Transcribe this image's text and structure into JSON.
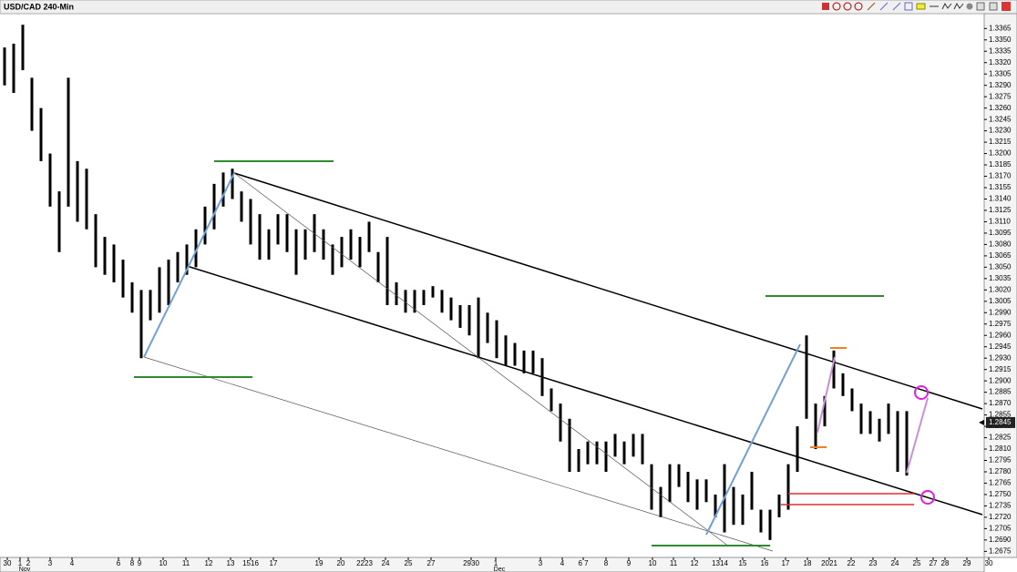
{
  "chart_data": {
    "type": "ohlc",
    "title": "USD/CAD 240-Min",
    "high": [
      1.334,
      1.3345,
      1.337,
      1.33,
      1.326,
      1.32,
      1.315,
      1.33,
      1.319,
      1.318,
      1.312,
      1.309,
      1.308,
      1.306,
      1.303,
      1.302,
      1.302,
      1.305,
      1.306,
      1.307,
      1.308,
      1.31,
      1.313,
      1.316,
      1.3175,
      1.318,
      1.315,
      1.314,
      1.312,
      1.31,
      1.312,
      1.312,
      1.31,
      1.31,
      1.312,
      1.31,
      1.308,
      1.309,
      1.31,
      1.309,
      1.311,
      1.307,
      1.309,
      1.303,
      1.302,
      1.302,
      1.302,
      1.3025,
      1.302,
      1.301,
      1.3,
      1.3,
      1.301,
      1.299,
      1.298,
      1.296,
      1.295,
      1.294,
      1.294,
      1.293,
      1.289,
      1.287,
      1.285,
      1.281,
      1.282,
      1.282,
      1.282,
      1.283,
      1.282,
      1.283,
      1.283,
      1.279,
      1.276,
      1.279,
      1.279,
      1.278,
      1.277,
      1.277,
      1.275,
      1.279,
      1.276,
      1.275,
      1.278,
      1.273,
      1.273,
      1.275,
      1.279,
      1.284,
      1.296,
      1.287,
      1.288,
      1.294,
      1.291,
      1.289,
      1.287,
      1.286,
      1.285,
      1.287,
      1.286,
      1.286
    ],
    "low": [
      1.329,
      1.328,
      1.331,
      1.323,
      1.319,
      1.313,
      1.307,
      1.313,
      1.311,
      1.31,
      1.305,
      1.304,
      1.303,
      1.301,
      1.299,
      1.293,
      1.298,
      1.299,
      1.3,
      1.303,
      1.304,
      1.305,
      1.308,
      1.31,
      1.313,
      1.314,
      1.311,
      1.308,
      1.306,
      1.306,
      1.308,
      1.307,
      1.304,
      1.306,
      1.307,
      1.306,
      1.304,
      1.305,
      1.306,
      1.305,
      1.307,
      1.303,
      1.3,
      1.3,
      1.299,
      1.299,
      1.3,
      1.301,
      1.299,
      1.298,
      1.297,
      1.296,
      1.293,
      1.295,
      1.293,
      1.292,
      1.292,
      1.291,
      1.291,
      1.288,
      1.286,
      1.282,
      1.278,
      1.278,
      1.279,
      1.279,
      1.278,
      1.28,
      1.279,
      1.28,
      1.279,
      1.273,
      1.272,
      1.274,
      1.276,
      1.274,
      1.273,
      1.274,
      1.272,
      1.27,
      1.271,
      1.271,
      1.273,
      1.27,
      1.269,
      1.272,
      1.273,
      1.278,
      1.285,
      1.281,
      1.284,
      1.289,
      1.288,
      1.286,
      1.283,
      1.283,
      1.282,
      1.283,
      1.278,
      1.2775
    ],
    "color": "#000000",
    "last_price": 1.2845,
    "xlim": [
      -0.5,
      107.5
    ],
    "ylim": [
      1.2667,
      1.3381
    ],
    "yticks": [
      1.2675,
      {
        "value": 1.269,
        "label": "1.2690"
      },
      1.2705,
      {
        "value": 1.272,
        "label": "1.2720"
      },
      1.2735,
      {
        "value": 1.275,
        "label": "1.2750"
      },
      1.2765,
      {
        "value": 1.278,
        "label": "1.2780"
      },
      1.2795,
      {
        "value": 1.281,
        "label": "1.2810"
      },
      1.2825,
      {
        "value": 1.284,
        "label": "1.2840"
      },
      1.2855,
      {
        "value": 1.287,
        "label": "1.2870"
      },
      1.2885,
      {
        "value": 1.29,
        "label": "1.2900"
      },
      1.2915,
      {
        "value": 1.293,
        "label": "1.2930"
      },
      1.2945,
      {
        "value": 1.296,
        "label": "1.2960"
      },
      1.2975,
      {
        "value": 1.299,
        "label": "1.2990"
      },
      1.3005,
      {
        "value": 1.302,
        "label": "1.3020"
      },
      1.3035,
      {
        "value": 1.305,
        "label": "1.3050"
      },
      1.3065,
      {
        "value": 1.308,
        "label": "1.3080"
      },
      1.3095,
      {
        "value": 1.311,
        "label": "1.3110"
      },
      1.3125,
      {
        "value": 1.314,
        "label": "1.3140"
      },
      1.3155,
      {
        "value": 1.317,
        "label": "1.3170"
      },
      1.3185,
      {
        "value": 1.32,
        "label": "1.3200"
      },
      1.3215,
      {
        "value": 1.323,
        "label": "1.3230"
      },
      1.3245,
      {
        "value": 1.326,
        "label": "1.3260"
      },
      1.3275,
      {
        "value": 1.329,
        "label": "1.3290"
      },
      1.3305,
      {
        "value": 1.332,
        "label": "1.3320"
      },
      1.3335,
      {
        "value": 1.335,
        "label": "1.3350"
      },
      1.3365
    ],
    "xticks": [
      {
        "value": 0.3,
        "label": "30"
      },
      {
        "value": 1.7,
        "label": "1"
      },
      {
        "value": 2.6,
        "label": "2"
      },
      {
        "value": 5,
        "label": "3"
      },
      {
        "value": 7.4,
        "label": "4"
      },
      {
        "value": 12.5,
        "label": "6"
      },
      {
        "value": 14,
        "label": "8"
      },
      {
        "value": 14.8,
        "label": "9"
      },
      {
        "value": 17.4,
        "label": "10"
      },
      {
        "value": 19.9,
        "label": "11"
      },
      {
        "value": 22.4,
        "label": "12"
      },
      {
        "value": 24.8,
        "label": "13"
      },
      {
        "value": 27,
        "label": "1516"
      },
      {
        "value": 29.5,
        "label": "17"
      },
      {
        "value": 34.5,
        "label": "19"
      },
      {
        "value": 36.9,
        "label": "20"
      },
      {
        "value": 39.5,
        "label": "2223"
      },
      {
        "value": 41.8,
        "label": "24"
      },
      {
        "value": 44.3,
        "label": "25"
      },
      {
        "value": 46.8,
        "label": "27"
      },
      {
        "value": 51.2,
        "label": "2930"
      },
      {
        "value": 53.9,
        "label": "1"
      },
      {
        "value": 58.8,
        "label": "3"
      },
      {
        "value": 61.2,
        "label": "4"
      },
      {
        "value": 63.5,
        "label": "6 7"
      },
      {
        "value": 66,
        "label": "8"
      },
      {
        "value": 68.5,
        "label": "9"
      },
      {
        "value": 71.1,
        "label": "10"
      },
      {
        "value": 73.4,
        "label": "11"
      },
      {
        "value": 75.7,
        "label": "12"
      },
      {
        "value": 78.5,
        "label": "1314"
      },
      {
        "value": 81,
        "label": "15"
      },
      {
        "value": 83.4,
        "label": "16"
      },
      {
        "value": 85.7,
        "label": "17"
      },
      {
        "value": 88.1,
        "label": "18"
      },
      {
        "value": 90.5,
        "label": "2021"
      },
      {
        "value": 92.9,
        "label": "22"
      },
      {
        "value": 95.3,
        "label": "23"
      },
      {
        "value": 97.7,
        "label": "24"
      },
      {
        "value": 100.1,
        "label": "25"
      },
      {
        "value": 101.9,
        "label": "27"
      },
      {
        "value": 103.2,
        "label": "28"
      },
      {
        "value": 105.6,
        "label": "29"
      },
      {
        "value": 108,
        "label": "30"
      }
    ],
    "months": [
      {
        "value": 2.2,
        "label": "Nov"
      },
      {
        "value": 54.3,
        "label": "Dec"
      }
    ]
  }
}
